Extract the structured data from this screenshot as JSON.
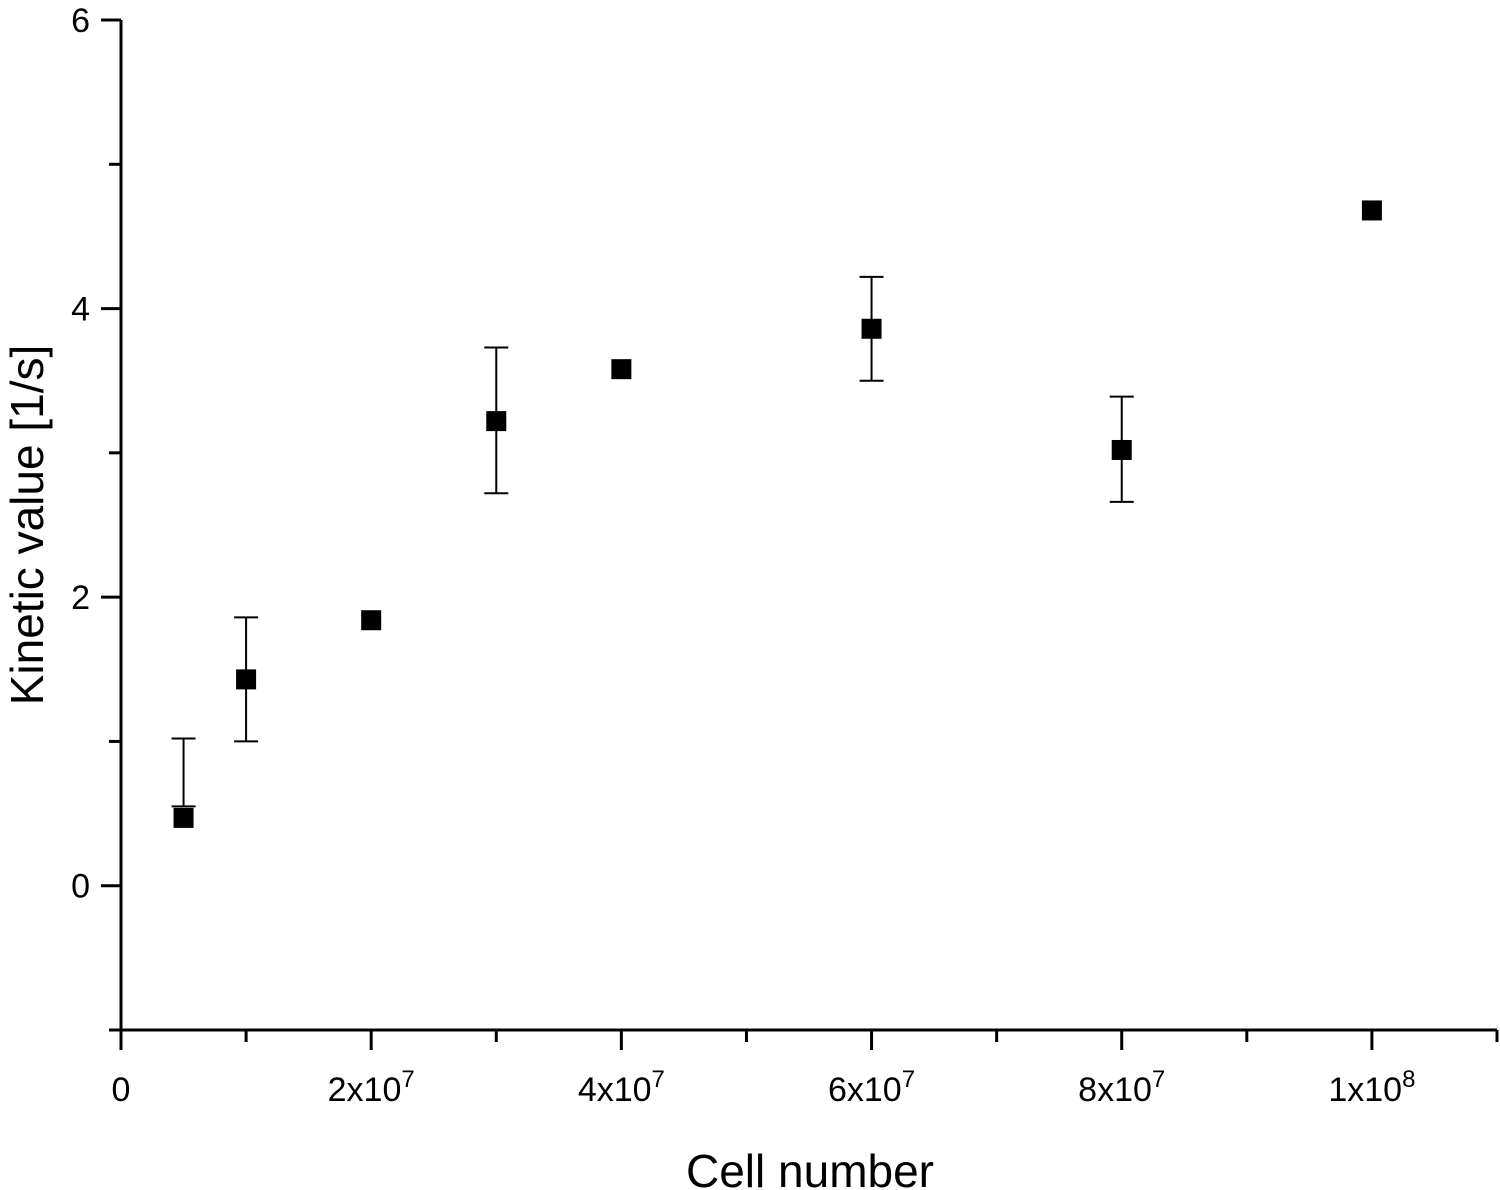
{
  "chart_data": {
    "type": "scatter",
    "title": "",
    "xlabel": "Cell number",
    "ylabel": "Kinetic value [1/s]",
    "xlim": [
      0,
      110000000
    ],
    "ylim": [
      -1,
      6
    ],
    "grid": false,
    "legend": "none",
    "x_ticks": [
      {
        "value": 0,
        "base": "0",
        "exp": ""
      },
      {
        "value": 20000000,
        "base": "2x10",
        "exp": "7"
      },
      {
        "value": 40000000,
        "base": "4x10",
        "exp": "7"
      },
      {
        "value": 60000000,
        "base": "6x10",
        "exp": "7"
      },
      {
        "value": 80000000,
        "base": "8x10",
        "exp": "7"
      },
      {
        "value": 100000000,
        "base": "1x10",
        "exp": "8"
      }
    ],
    "x_minor_ticks": [
      10000000,
      30000000,
      50000000,
      70000000,
      90000000,
      110000000
    ],
    "y_ticks": [
      {
        "value": 0,
        "label": "0"
      },
      {
        "value": 2,
        "label": "2"
      },
      {
        "value": 4,
        "label": "4"
      },
      {
        "value": 6,
        "label": "6"
      }
    ],
    "y_minor_ticks": [
      -1,
      1,
      3,
      5
    ],
    "series": [
      {
        "name": "Kinetic value",
        "marker": "square",
        "color": "#000000",
        "points": [
          {
            "x": 5000000,
            "y": 0.47,
            "err_low": 0.55,
            "err_high": 1.02
          },
          {
            "x": 10000000,
            "y": 1.43,
            "err_low": 1.0,
            "err_high": 1.86
          },
          {
            "x": 20000000,
            "y": 1.84,
            "err_low": null,
            "err_high": null
          },
          {
            "x": 30000000,
            "y": 3.22,
            "err_low": 2.72,
            "err_high": 3.73
          },
          {
            "x": 40000000,
            "y": 3.58,
            "err_low": null,
            "err_high": null
          },
          {
            "x": 60000000,
            "y": 3.86,
            "err_low": 3.5,
            "err_high": 4.22
          },
          {
            "x": 80000000,
            "y": 3.02,
            "err_low": 2.66,
            "err_high": 3.39
          },
          {
            "x": 100000000,
            "y": 4.68,
            "err_low": null,
            "err_high": null
          }
        ]
      }
    ]
  }
}
